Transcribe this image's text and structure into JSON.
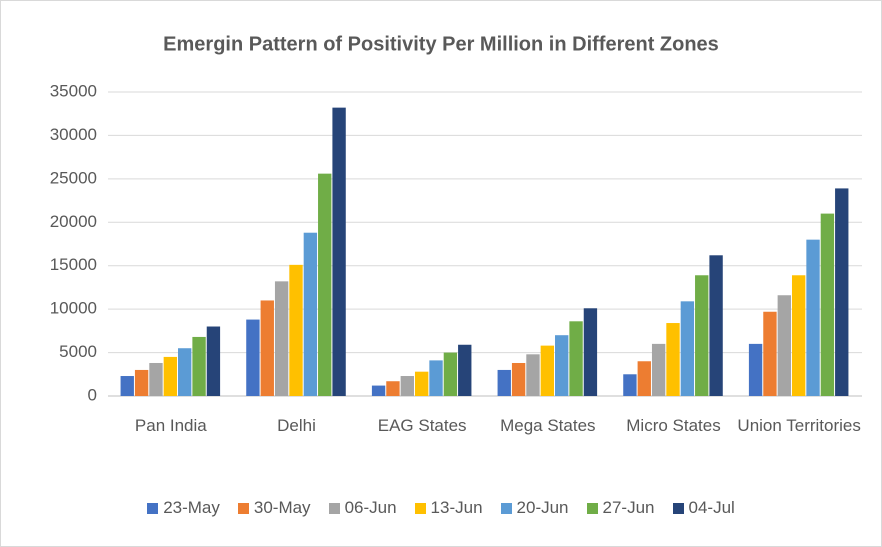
{
  "chart_data": {
    "type": "bar",
    "title": "Emergin Pattern of Positivity Per Million in Different Zones",
    "categories": [
      "Pan India",
      "Delhi",
      "EAG States",
      "Mega States",
      "Micro States",
      "Union Territories"
    ],
    "series": [
      {
        "name": "23-May",
        "color": "#4472c4",
        "values": [
          2300,
          8800,
          1200,
          3000,
          2500,
          6000
        ]
      },
      {
        "name": "30-May",
        "color": "#ed7d31",
        "values": [
          3000,
          11000,
          1700,
          3800,
          4000,
          9700
        ]
      },
      {
        "name": "06-Jun",
        "color": "#a5a5a5",
        "values": [
          3800,
          13200,
          2300,
          4800,
          6000,
          11600
        ]
      },
      {
        "name": "13-Jun",
        "color": "#ffc000",
        "values": [
          4500,
          15100,
          2800,
          5800,
          8400,
          13900
        ]
      },
      {
        "name": "20-Jun",
        "color": "#5b9bd5",
        "values": [
          5500,
          18800,
          4100,
          7000,
          10900,
          18000
        ]
      },
      {
        "name": "27-Jun",
        "color": "#70ad47",
        "values": [
          6800,
          25600,
          5000,
          8600,
          13900,
          21000
        ]
      },
      {
        "name": "04-Jul",
        "color": "#264478",
        "values": [
          8000,
          33200,
          5900,
          10100,
          16200,
          23900
        ]
      }
    ],
    "ylim": [
      0,
      35000
    ],
    "yticks": [
      0,
      5000,
      10000,
      15000,
      20000,
      25000,
      30000,
      35000
    ],
    "grid": true,
    "legend": "bottom"
  }
}
